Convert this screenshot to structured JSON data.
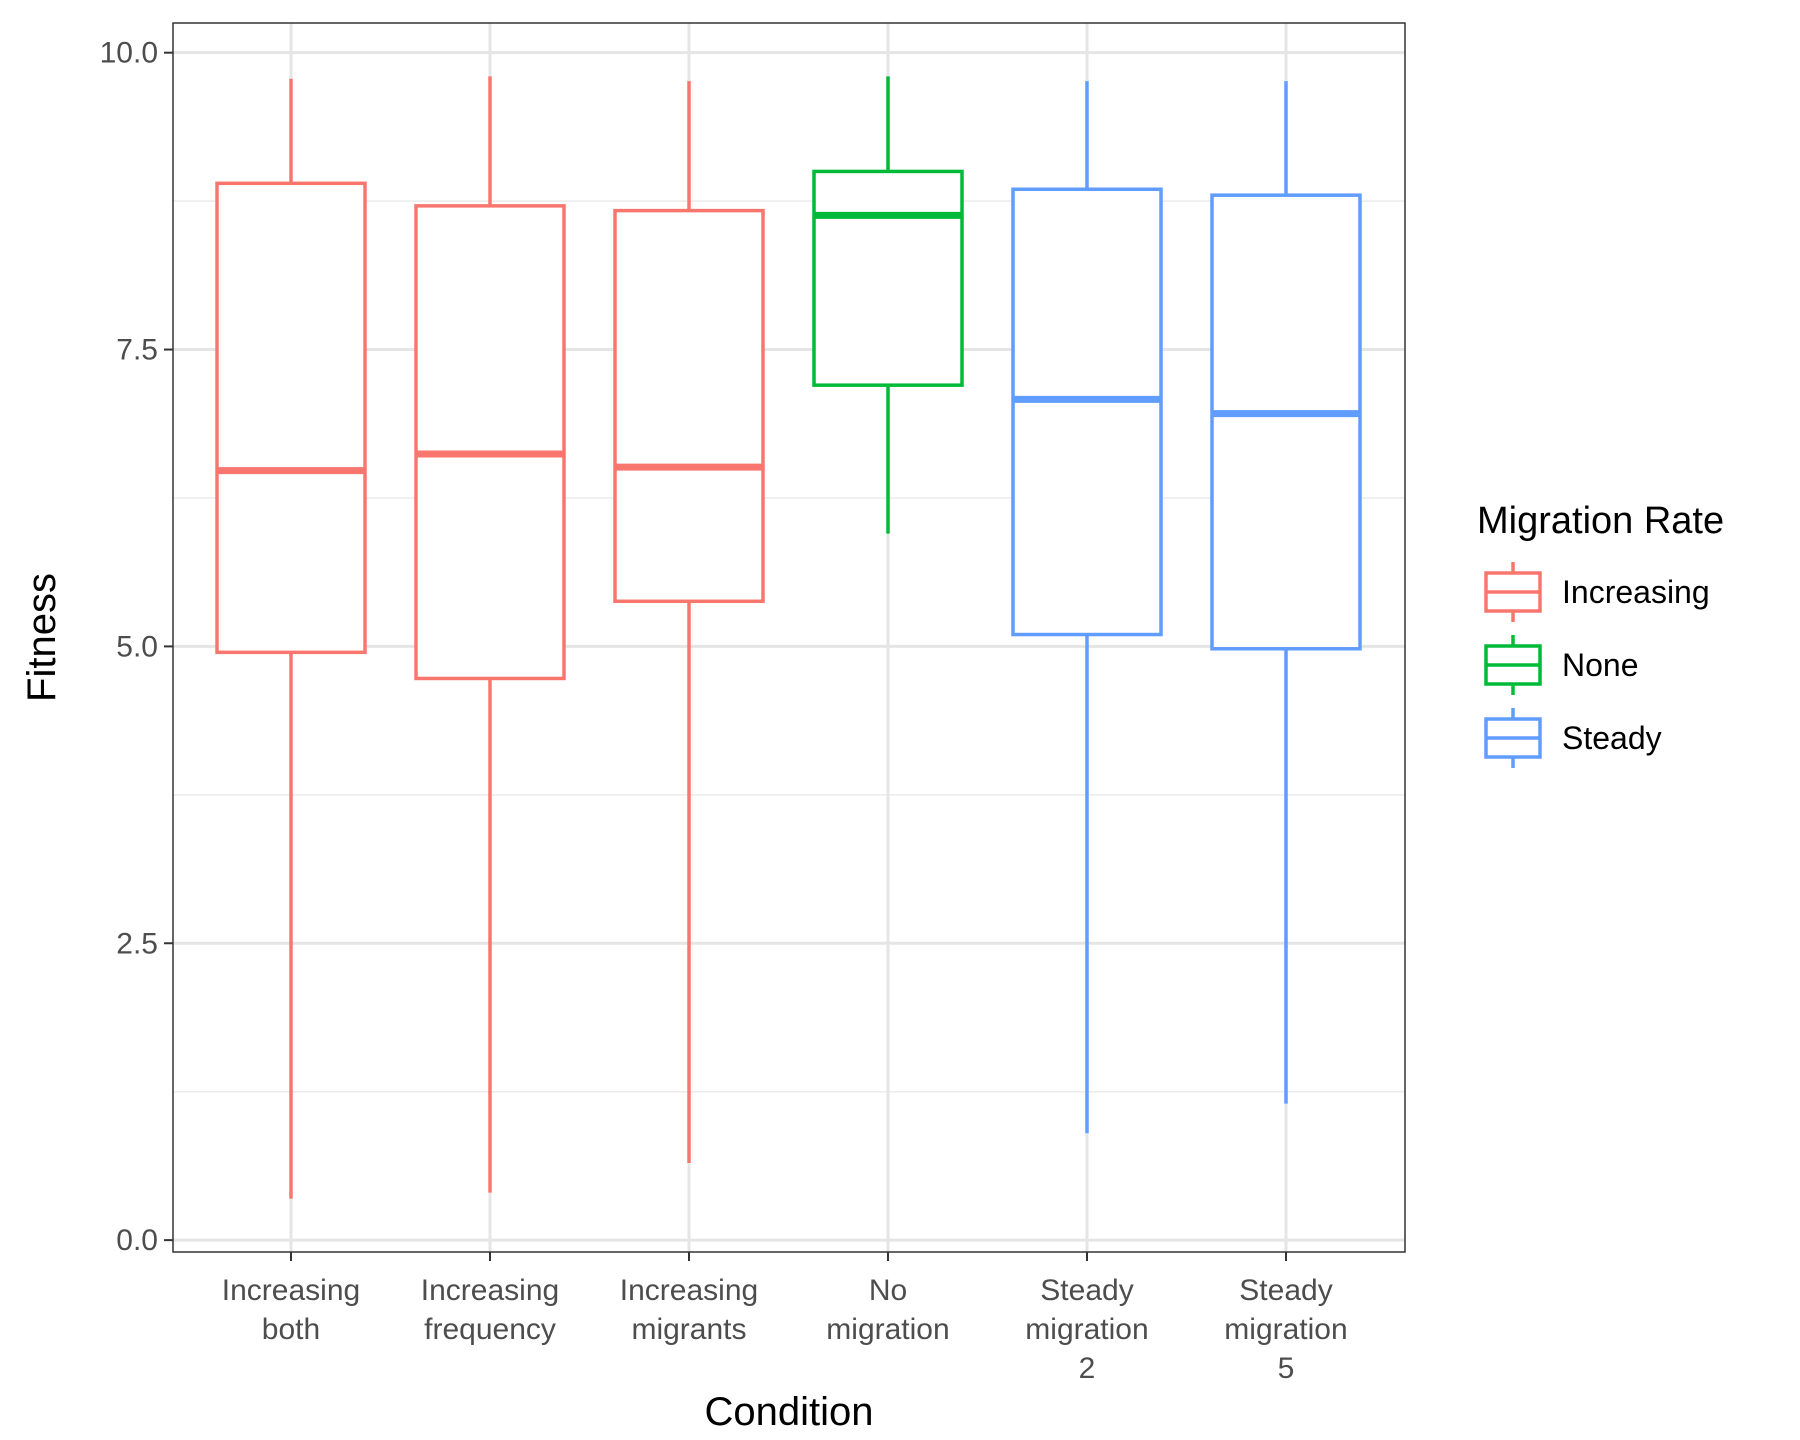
{
  "chart_data": {
    "type": "boxplot",
    "title": "",
    "xlabel": "Condition",
    "ylabel": "Fitness",
    "ylim": [
      -0.1,
      10.25
    ],
    "yticks": [
      0.0,
      2.5,
      5.0,
      7.5,
      10.0
    ],
    "ytick_labels": [
      "0.0",
      "2.5",
      "5.0",
      "7.5",
      "10.0"
    ],
    "ytick_minor": [
      1.25,
      3.75,
      6.25,
      8.75
    ],
    "grid": true,
    "legend": {
      "title": "Migration Rate",
      "position": "right",
      "entries": [
        {
          "label": "Increasing",
          "color": "#F8766D"
        },
        {
          "label": "None",
          "color": "#00BA38"
        },
        {
          "label": "Steady",
          "color": "#619CFF"
        }
      ]
    },
    "categories": [
      {
        "label_lines": [
          "Increasing",
          "both"
        ],
        "group": "Increasing",
        "color": "#F8766D",
        "min": 0.35,
        "q1": 4.95,
        "median": 6.48,
        "q3": 8.9,
        "max": 9.78
      },
      {
        "label_lines": [
          "Increasing",
          "frequency"
        ],
        "group": "Increasing",
        "color": "#F8766D",
        "min": 0.4,
        "q1": 4.73,
        "median": 6.62,
        "q3": 8.71,
        "max": 9.8
      },
      {
        "label_lines": [
          "Increasing",
          "migrants"
        ],
        "group": "Increasing",
        "color": "#F8766D",
        "min": 0.65,
        "q1": 5.38,
        "median": 6.51,
        "q3": 8.67,
        "max": 9.76
      },
      {
        "label_lines": [
          "No",
          "migration"
        ],
        "group": "None",
        "color": "#00BA38",
        "min": 5.95,
        "q1": 7.2,
        "median": 8.63,
        "q3": 9.0,
        "max": 9.8
      },
      {
        "label_lines": [
          "Steady",
          "migration",
          "2"
        ],
        "group": "Steady",
        "color": "#619CFF",
        "min": 0.9,
        "q1": 5.1,
        "median": 7.08,
        "q3": 8.85,
        "max": 9.76
      },
      {
        "label_lines": [
          "Steady",
          "migration",
          "5"
        ],
        "group": "Steady",
        "color": "#619CFF",
        "min": 1.15,
        "q1": 4.98,
        "median": 6.96,
        "q3": 8.8,
        "max": 9.76
      }
    ]
  }
}
